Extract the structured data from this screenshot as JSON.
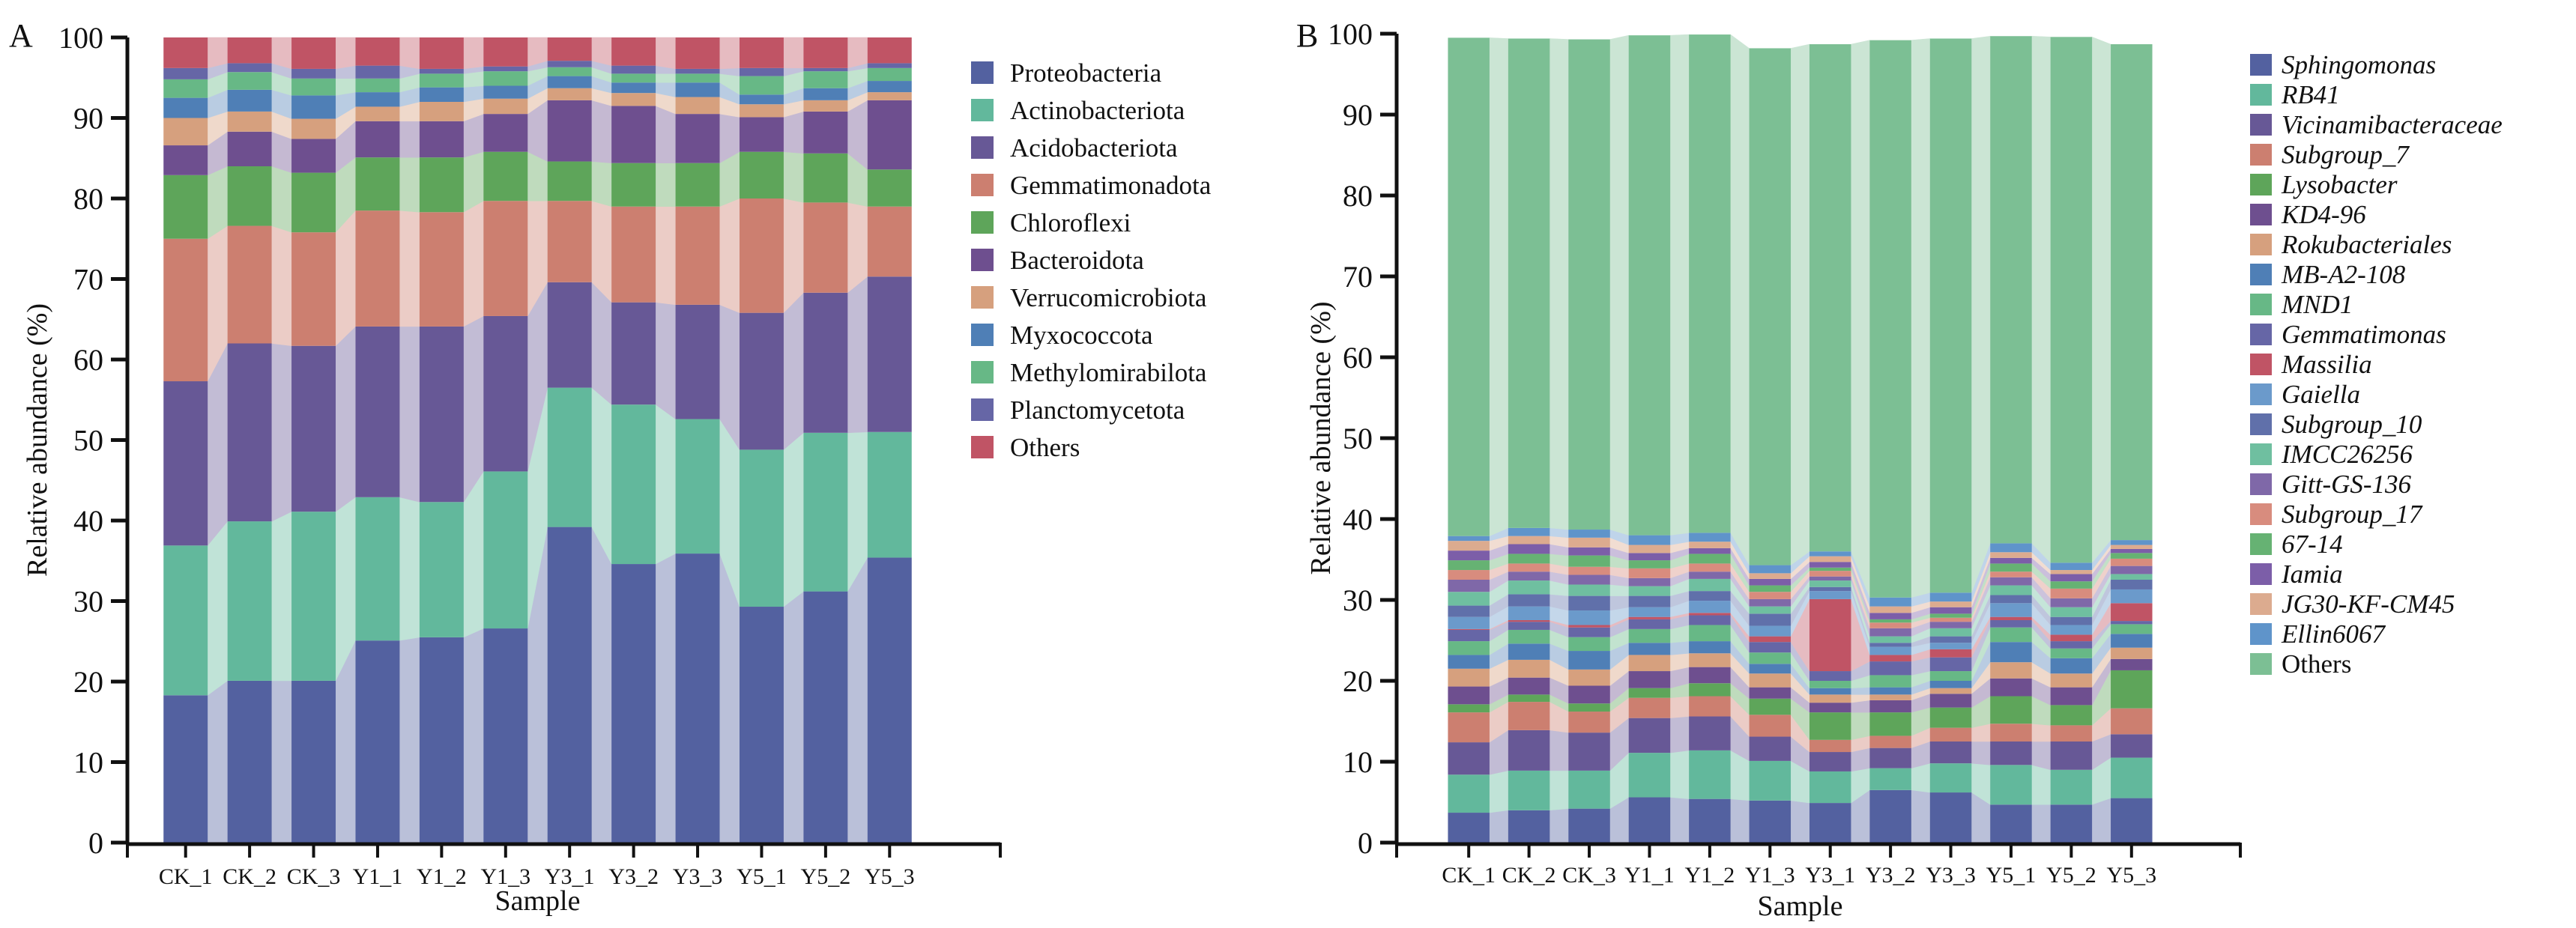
{
  "chart_data": [
    {
      "id": "A",
      "type": "bar",
      "stacked": true,
      "panel_label": "A",
      "title": "",
      "xlabel": "Sample",
      "ylabel": "Relative abundance (%)",
      "ylim": [
        0,
        100
      ],
      "yticks": [
        0,
        10,
        20,
        30,
        40,
        50,
        60,
        70,
        80,
        90,
        100
      ],
      "categories": [
        "CK_1",
        "CK_2",
        "CK_3",
        "Y1_1",
        "Y1_2",
        "Y1_3",
        "Y3_1",
        "Y3_2",
        "Y3_3",
        "Y5_1",
        "Y5_2",
        "Y5_3"
      ],
      "legend_position": "right",
      "legend_italic": false,
      "series": [
        {
          "name": "Proteobacteria",
          "color": "#5361a0",
          "values": [
            18.3,
            20.1,
            20.1,
            25.1,
            25.5,
            26.6,
            39.2,
            34.6,
            35.9,
            29.3,
            31.2,
            35.4
          ]
        },
        {
          "name": "Actinobacteriota",
          "color": "#62b89c",
          "values": [
            18.6,
            19.8,
            21.0,
            17.8,
            16.8,
            19.5,
            17.3,
            19.8,
            16.7,
            19.5,
            19.7,
            15.6
          ]
        },
        {
          "name": "Acidobacteriota",
          "color": "#675896",
          "values": [
            20.4,
            22.1,
            20.6,
            21.2,
            21.8,
            19.3,
            13.1,
            12.7,
            14.2,
            17.0,
            17.4,
            19.3
          ]
        },
        {
          "name": "Gemmatimonadota",
          "color": "#cc7f70",
          "values": [
            17.7,
            14.6,
            14.1,
            14.4,
            14.2,
            14.3,
            10.1,
            11.9,
            12.2,
            14.2,
            11.2,
            8.7
          ]
        },
        {
          "name": "Chloroflexi",
          "color": "#5ea55a",
          "values": [
            7.9,
            7.4,
            7.4,
            6.6,
            6.8,
            6.1,
            4.9,
            5.4,
            5.4,
            5.8,
            6.1,
            4.6
          ]
        },
        {
          "name": "Bacteroidota",
          "color": "#6e4f8f",
          "values": [
            3.7,
            4.3,
            4.2,
            4.5,
            4.5,
            4.7,
            7.6,
            7.1,
            6.1,
            4.3,
            5.2,
            8.6
          ]
        },
        {
          "name": "Verrucomicrobiota",
          "color": "#d6a07e",
          "values": [
            3.4,
            2.5,
            2.5,
            1.8,
            2.4,
            1.9,
            1.5,
            1.6,
            2.1,
            1.6,
            1.4,
            1.0
          ]
        },
        {
          "name": "Myxococcota",
          "color": "#4f7fb6",
          "values": [
            2.5,
            2.7,
            2.9,
            1.8,
            1.8,
            1.6,
            1.5,
            1.3,
            1.8,
            1.2,
            1.5,
            1.4
          ]
        },
        {
          "name": "Methylomirabilota",
          "color": "#67b886",
          "values": [
            2.3,
            2.2,
            2.1,
            1.7,
            1.7,
            1.8,
            1.1,
            1.1,
            1.1,
            2.3,
            2.1,
            1.6
          ]
        },
        {
          "name": "Planctomycetota",
          "color": "#6666a6",
          "values": [
            1.4,
            1.1,
            1.2,
            1.6,
            0.6,
            0.6,
            0.8,
            1.0,
            0.6,
            1.0,
            0.4,
            0.6
          ]
        },
        {
          "name": "Others",
          "color": "#c05465",
          "values": [
            3.8,
            3.2,
            3.9,
            3.5,
            3.9,
            3.6,
            2.9,
            3.5,
            3.9,
            3.8,
            3.8,
            3.2
          ]
        }
      ]
    },
    {
      "id": "B",
      "type": "bar",
      "stacked": true,
      "panel_label": "B",
      "title": "",
      "xlabel": "Sample",
      "ylabel": "Relative abundance (%)",
      "ylim": [
        0,
        100
      ],
      "yticks": [
        0,
        10,
        20,
        30,
        40,
        50,
        60,
        70,
        80,
        90,
        100
      ],
      "categories": [
        "CK_1",
        "CK_2",
        "CK_3",
        "Y1_1",
        "Y1_2",
        "Y1_3",
        "Y3_1",
        "Y3_2",
        "Y3_3",
        "Y5_1",
        "Y5_2",
        "Y5_3"
      ],
      "legend_position": "right",
      "legend_italic": true,
      "legend_nonitalic": [
        "Others"
      ],
      "series": [
        {
          "name": "Sphingomonas",
          "color": "#5361a0",
          "values": [
            3.7,
            4.0,
            4.2,
            5.6,
            5.4,
            5.2,
            4.9,
            6.5,
            6.2,
            4.7,
            4.7,
            5.5
          ]
        },
        {
          "name": "RB41",
          "color": "#62b89c",
          "values": [
            4.7,
            4.9,
            4.7,
            5.5,
            6.0,
            4.9,
            3.9,
            2.7,
            3.6,
            4.9,
            4.3,
            5.0
          ]
        },
        {
          "name": "Vicinamibacteraceae",
          "color": "#675896",
          "values": [
            4.0,
            5.0,
            4.7,
            4.3,
            4.2,
            3.0,
            2.4,
            2.5,
            2.7,
            2.9,
            3.5,
            2.9
          ]
        },
        {
          "name": "Subgroup_7",
          "color": "#cc7f70",
          "values": [
            3.7,
            3.5,
            2.6,
            2.5,
            2.5,
            2.7,
            1.5,
            1.5,
            1.7,
            2.2,
            2.0,
            3.2
          ]
        },
        {
          "name": "Lysobacter",
          "color": "#5ea55a",
          "values": [
            1.0,
            0.9,
            1.0,
            1.2,
            1.6,
            2.0,
            3.4,
            2.9,
            2.5,
            3.4,
            2.5,
            4.7
          ]
        },
        {
          "name": "KD4-96",
          "color": "#6e4f8f",
          "values": [
            2.2,
            2.1,
            2.2,
            2.1,
            2.0,
            1.4,
            1.2,
            1.5,
            1.7,
            2.2,
            2.2,
            1.4
          ]
        },
        {
          "name": "Rokubacteriales",
          "color": "#d6a07e",
          "values": [
            2.2,
            2.2,
            2.0,
            2.0,
            1.7,
            1.7,
            1.0,
            0.7,
            0.7,
            2.0,
            1.7,
            1.4
          ]
        },
        {
          "name": "MB-A2-108",
          "color": "#4f7fb6",
          "values": [
            1.7,
            2.0,
            2.3,
            1.5,
            1.5,
            1.2,
            0.8,
            0.9,
            0.9,
            2.5,
            1.9,
            1.7
          ]
        },
        {
          "name": "MND1",
          "color": "#67b886",
          "values": [
            1.7,
            1.7,
            1.7,
            1.7,
            2.0,
            1.4,
            0.9,
            1.5,
            1.2,
            1.8,
            1.2,
            1.2
          ]
        },
        {
          "name": "Gemmatimonas",
          "color": "#6666a6",
          "values": [
            1.4,
            1.0,
            1.2,
            1.2,
            1.2,
            1.3,
            1.2,
            1.7,
            1.7,
            0.9,
            0.9,
            0.4
          ]
        },
        {
          "name": "Massilia",
          "color": "#c05465",
          "values": [
            0.1,
            0.2,
            0.3,
            0.3,
            0.3,
            0.7,
            8.9,
            0.8,
            1.0,
            0.4,
            0.8,
            2.2
          ]
        },
        {
          "name": "Gaiella",
          "color": "#6b9acb",
          "values": [
            1.5,
            1.7,
            1.8,
            1.2,
            1.5,
            1.3,
            1.0,
            1.0,
            0.8,
            1.7,
            1.2,
            1.7
          ]
        },
        {
          "name": "Subgroup_10",
          "color": "#6070aa",
          "values": [
            1.4,
            1.5,
            1.8,
            1.4,
            1.2,
            1.5,
            0.5,
            0.5,
            0.8,
            1.0,
            1.0,
            1.2
          ]
        },
        {
          "name": "IMCC26256",
          "color": "#6fbfa0",
          "values": [
            1.7,
            1.7,
            1.4,
            1.2,
            1.5,
            0.9,
            0.8,
            0.8,
            1.0,
            1.2,
            1.2,
            0.7
          ]
        },
        {
          "name": "Gitt-GS-136",
          "color": "#7f68a8",
          "values": [
            1.5,
            1.1,
            1.2,
            1.0,
            0.9,
            0.9,
            0.5,
            1.0,
            0.8,
            1.0,
            1.1,
            1.0
          ]
        },
        {
          "name": "Subgroup_17",
          "color": "#d88c7e",
          "values": [
            1.2,
            1.0,
            1.0,
            1.2,
            1.0,
            0.9,
            0.7,
            0.7,
            0.5,
            0.7,
            1.2,
            0.9
          ]
        },
        {
          "name": "67-14",
          "color": "#66b273",
          "values": [
            1.2,
            1.2,
            1.4,
            1.0,
            1.2,
            0.8,
            0.4,
            0.4,
            0.5,
            1.0,
            0.9,
            0.7
          ]
        },
        {
          "name": "Iamia",
          "color": "#7c5ea8",
          "values": [
            1.2,
            1.2,
            1.0,
            0.9,
            0.7,
            0.8,
            0.7,
            0.8,
            0.8,
            0.7,
            0.9,
            0.5
          ]
        },
        {
          "name": "JG30-KF-CM45",
          "color": "#dcab8f",
          "values": [
            1.2,
            1.0,
            1.2,
            1.0,
            0.8,
            0.7,
            0.7,
            0.8,
            0.7,
            0.7,
            0.5,
            0.5
          ]
        },
        {
          "name": "Ellin6067",
          "color": "#5f94ca",
          "values": [
            0.6,
            1.0,
            1.0,
            1.2,
            1.1,
            1.0,
            0.6,
            1.1,
            1.1,
            1.1,
            0.9,
            0.6
          ]
        },
        {
          "name": "Others",
          "color": "#7cbf94",
          "values": [
            61.6,
            60.5,
            60.6,
            61.8,
            61.6,
            63.9,
            62.7,
            68.9,
            68.5,
            62.7,
            65.0,
            61.3
          ]
        }
      ]
    }
  ]
}
